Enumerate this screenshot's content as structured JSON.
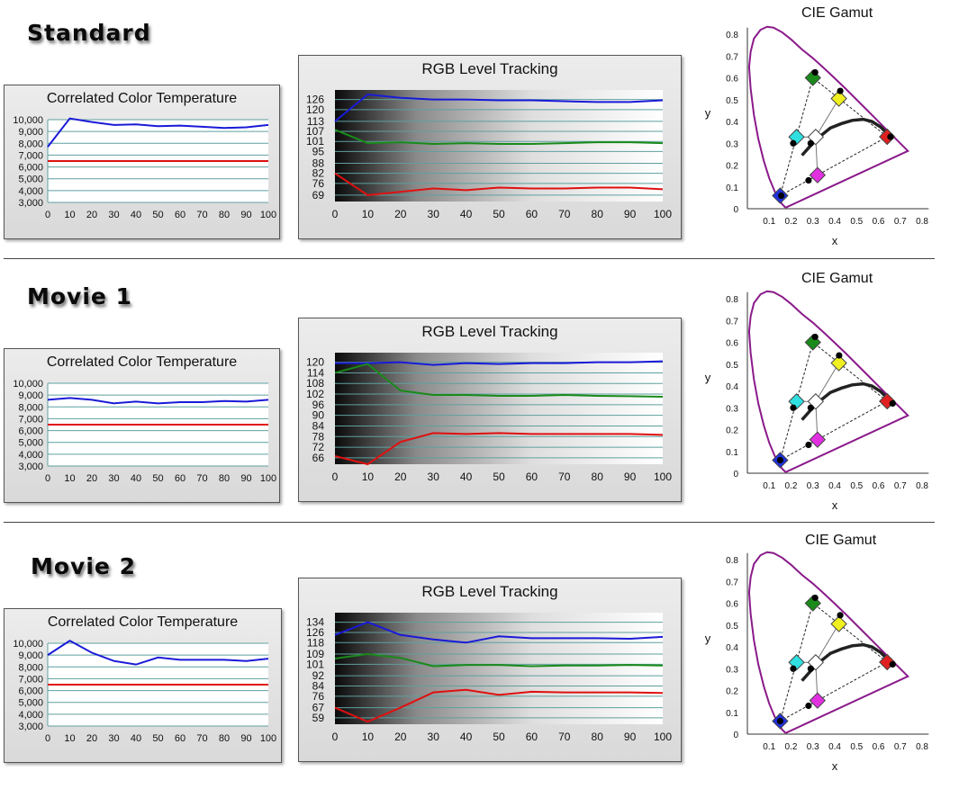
{
  "sections": [
    {
      "title": "Standard",
      "cct": {
        "title": "Correlated Color Temperature",
        "x": [
          0,
          10,
          20,
          30,
          40,
          50,
          60,
          70,
          80,
          90,
          100
        ],
        "x_ticks": [
          "0",
          "10",
          "20",
          "30",
          "40",
          "50",
          "60",
          "70",
          "80",
          "90",
          "100"
        ],
        "y_ticks": [
          "3,000",
          "4,000",
          "5,000",
          "6,000",
          "7,000",
          "8,000",
          "9,000",
          "10,000"
        ],
        "y_range": [
          3000,
          10000
        ],
        "measured": [
          7700,
          10100,
          9800,
          9550,
          9600,
          9450,
          9500,
          9400,
          9300,
          9350,
          9550
        ],
        "target": 6500,
        "colors": {
          "measured": "#1a1ad8",
          "target": "#e01010"
        }
      },
      "rgb": {
        "title": "RGB Level Tracking",
        "x": [
          0,
          10,
          20,
          30,
          40,
          50,
          60,
          70,
          80,
          90,
          100
        ],
        "x_ticks": [
          "0",
          "10",
          "20",
          "30",
          "40",
          "50",
          "60",
          "70",
          "80",
          "90",
          "100"
        ],
        "y_ticks": [
          "69",
          "76",
          "82",
          "88",
          "95",
          "101",
          "107",
          "113",
          "120",
          "126"
        ],
        "series": [
          {
            "color": "#1a1ad8",
            "values": [
              113,
              129,
              127,
              126,
              126,
              125.5,
              125.5,
              125,
              124.5,
              124.5,
              125.5
            ]
          },
          {
            "color": "#1a8a1a",
            "values": [
              108,
              100,
              100.5,
              99.5,
              100,
              99.5,
              99.5,
              100,
              100.5,
              100.5,
              100
            ]
          },
          {
            "color": "#e01010",
            "values": [
              82,
              69,
              71,
              73,
              72,
              73.5,
              73,
              73,
              73.5,
              73.5,
              72.5
            ]
          }
        ]
      },
      "gamut": {
        "title": "CIE Gamut",
        "xlabel": "x",
        "ylabel": "y",
        "x_ticks": [
          "0.1",
          "0.2",
          "0.3",
          "0.4",
          "0.5",
          "0.6",
          "0.7",
          "0.8"
        ],
        "y_ticks": [
          "0",
          "0.1",
          "0.2",
          "0.3",
          "0.4",
          "0.5",
          "0.6",
          "0.7",
          "0.8"
        ],
        "colors": {
          "locus": "#8a1a8a"
        },
        "measured": {
          "red": [
            0.655,
            0.33
          ],
          "green": [
            0.31,
            0.625
          ],
          "blue": [
            0.155,
            0.06
          ],
          "white": [
            0.29,
            0.3
          ],
          "cyan": [
            0.21,
            0.3
          ],
          "magenta": [
            0.28,
            0.13
          ],
          "yellow": [
            0.425,
            0.54
          ]
        }
      }
    },
    {
      "title": "Movie 1",
      "cct": {
        "title": "Correlated Color Temperature",
        "x": [
          0,
          10,
          20,
          30,
          40,
          50,
          60,
          70,
          80,
          90,
          100
        ],
        "x_ticks": [
          "0",
          "10",
          "20",
          "30",
          "40",
          "50",
          "60",
          "70",
          "80",
          "90",
          "100"
        ],
        "y_ticks": [
          "3,000",
          "4,000",
          "5,000",
          "6,000",
          "7,000",
          "8,000",
          "9,000",
          "10,000"
        ],
        "y_range": [
          3000,
          10000
        ],
        "measured": [
          8600,
          8750,
          8600,
          8300,
          8450,
          8300,
          8400,
          8400,
          8500,
          8450,
          8600
        ],
        "target": 6500,
        "colors": {
          "measured": "#1a1ad8",
          "target": "#e01010"
        }
      },
      "rgb": {
        "title": "RGB Level Tracking",
        "x": [
          0,
          10,
          20,
          30,
          40,
          50,
          60,
          70,
          80,
          90,
          100
        ],
        "x_ticks": [
          "0",
          "10",
          "20",
          "30",
          "40",
          "50",
          "60",
          "70",
          "80",
          "90",
          "100"
        ],
        "y_ticks": [
          "66",
          "72",
          "78",
          "84",
          "90",
          "96",
          "102",
          "108",
          "114",
          "120"
        ],
        "series": [
          {
            "color": "#1a1ad8",
            "values": [
              119.5,
              119.5,
              120,
              118.5,
              119.5,
              119,
              119.5,
              119.5,
              120,
              120,
              120.5
            ]
          },
          {
            "color": "#1a8a1a",
            "values": [
              114,
              119,
              104,
              101.5,
              101.5,
              101,
              101,
              101.5,
              101,
              100.8,
              100.5
            ]
          },
          {
            "color": "#e01010",
            "values": [
              67,
              62,
              75,
              80,
              79.5,
              80,
              79.5,
              79.5,
              79.5,
              79.5,
              79
            ]
          }
        ]
      },
      "gamut": {
        "title": "CIE Gamut",
        "xlabel": "x",
        "ylabel": "y",
        "x_ticks": [
          "0.1",
          "0.2",
          "0.3",
          "0.4",
          "0.5",
          "0.6",
          "0.7",
          "0.8"
        ],
        "y_ticks": [
          "0",
          "0.1",
          "0.2",
          "0.3",
          "0.4",
          "0.5",
          "0.6",
          "0.7",
          "0.8"
        ],
        "colors": {
          "locus": "#8a1a8a"
        },
        "measured": {
          "red": [
            0.665,
            0.32
          ],
          "green": [
            0.31,
            0.625
          ],
          "blue": [
            0.15,
            0.06
          ],
          "white": [
            0.29,
            0.3
          ],
          "cyan": [
            0.21,
            0.3
          ],
          "magenta": [
            0.28,
            0.13
          ],
          "yellow": [
            0.42,
            0.54
          ]
        }
      }
    },
    {
      "title": "Movie 2",
      "cct": {
        "title": "Correlated Color Temperature",
        "x": [
          0,
          10,
          20,
          30,
          40,
          50,
          60,
          70,
          80,
          90,
          100
        ],
        "x_ticks": [
          "0",
          "10",
          "20",
          "30",
          "40",
          "50",
          "60",
          "70",
          "80",
          "90",
          "100"
        ],
        "y_ticks": [
          "3,000",
          "4,000",
          "5,000",
          "6,000",
          "7,000",
          "8,000",
          "9,000",
          "10,000"
        ],
        "y_range": [
          3000,
          10000
        ],
        "measured": [
          9000,
          10300,
          9200,
          8500,
          8200,
          8800,
          8600,
          8600,
          8600,
          8500,
          8700
        ],
        "target": 6500,
        "colors": {
          "measured": "#1a1ad8",
          "target": "#e01010"
        }
      },
      "rgb": {
        "title": "RGB Level Tracking",
        "x": [
          0,
          10,
          20,
          30,
          40,
          50,
          60,
          70,
          80,
          90,
          100
        ],
        "x_ticks": [
          "0",
          "10",
          "20",
          "30",
          "40",
          "50",
          "60",
          "70",
          "80",
          "90",
          "100"
        ],
        "y_ticks": [
          "59",
          "67",
          "76",
          "84",
          "92",
          "101",
          "109",
          "118",
          "126",
          "134"
        ],
        "series": [
          {
            "color": "#1a1ad8",
            "values": [
              124,
              134,
              124,
              120.5,
              118,
              123,
              121.5,
              121.5,
              121.5,
              121,
              122.5
            ]
          },
          {
            "color": "#1a8a1a",
            "values": [
              105.5,
              109,
              106,
              99.5,
              100.5,
              100.5,
              99.5,
              100,
              100,
              100.5,
              100
            ]
          },
          {
            "color": "#e01010",
            "values": [
              67,
              56,
              67,
              79,
              81,
              77,
              79.5,
              79,
              79,
              79,
              78.5
            ]
          }
        ]
      },
      "gamut": {
        "title": "CIE Gamut",
        "xlabel": "x",
        "ylabel": "y",
        "x_ticks": [
          "0.1",
          "0.2",
          "0.3",
          "0.4",
          "0.5",
          "0.6",
          "0.7",
          "0.8"
        ],
        "y_ticks": [
          "0",
          "0.1",
          "0.2",
          "0.3",
          "0.4",
          "0.5",
          "0.6",
          "0.7",
          "0.8"
        ],
        "colors": {
          "locus": "#8a1a8a"
        },
        "measured": {
          "red": [
            0.665,
            0.32
          ],
          "green": [
            0.31,
            0.625
          ],
          "blue": [
            0.15,
            0.06
          ],
          "white": [
            0.29,
            0.3
          ],
          "cyan": [
            0.21,
            0.3
          ],
          "magenta": [
            0.28,
            0.13
          ],
          "yellow": [
            0.425,
            0.545
          ]
        }
      }
    }
  ],
  "chart_data": [
    {
      "type": "line",
      "title": "Correlated Color Temperature",
      "x": [
        0,
        10,
        20,
        30,
        40,
        50,
        60,
        70,
        80,
        90,
        100
      ],
      "ylim": [
        3000,
        10000
      ],
      "series": [
        {
          "values": [
            7700,
            10100,
            9800,
            9550,
            9600,
            9450,
            9500,
            9400,
            9300,
            9350,
            9550
          ]
        },
        {
          "values": [
            6500,
            6500,
            6500,
            6500,
            6500,
            6500,
            6500,
            6500,
            6500,
            6500,
            6500
          ]
        }
      ]
    },
    {
      "type": "line",
      "title": "RGB Level Tracking",
      "x": [
        0,
        10,
        20,
        30,
        40,
        50,
        60,
        70,
        80,
        90,
        100
      ],
      "series": [
        {
          "values": [
            113,
            129,
            127,
            126,
            126,
            125.5,
            125.5,
            125,
            124.5,
            124.5,
            125.5
          ]
        },
        {
          "values": [
            108,
            100,
            100.5,
            99.5,
            100,
            99.5,
            99.5,
            100,
            100.5,
            100.5,
            100
          ]
        },
        {
          "values": [
            82,
            69,
            71,
            73,
            72,
            73.5,
            73,
            73,
            73.5,
            73.5,
            72.5
          ]
        }
      ]
    },
    {
      "type": "scatter",
      "title": "CIE Gamut",
      "xlabel": "x",
      "ylabel": "y",
      "xlim": [
        0,
        0.8
      ],
      "ylim": [
        0,
        0.8
      ]
    },
    {
      "type": "line",
      "title": "Correlated Color Temperature",
      "x": [
        0,
        10,
        20,
        30,
        40,
        50,
        60,
        70,
        80,
        90,
        100
      ],
      "ylim": [
        3000,
        10000
      ],
      "series": [
        {
          "values": [
            8600,
            8750,
            8600,
            8300,
            8450,
            8300,
            8400,
            8400,
            8500,
            8450,
            8600
          ]
        },
        {
          "values": [
            6500,
            6500,
            6500,
            6500,
            6500,
            6500,
            6500,
            6500,
            6500,
            6500,
            6500
          ]
        }
      ]
    },
    {
      "type": "line",
      "title": "RGB Level Tracking",
      "x": [
        0,
        10,
        20,
        30,
        40,
        50,
        60,
        70,
        80,
        90,
        100
      ],
      "series": [
        {
          "values": [
            119.5,
            119.5,
            120,
            118.5,
            119.5,
            119,
            119.5,
            119.5,
            120,
            120,
            120.5
          ]
        },
        {
          "values": [
            114,
            119,
            104,
            101.5,
            101.5,
            101,
            101,
            101.5,
            101,
            100.8,
            100.5
          ]
        },
        {
          "values": [
            67,
            62,
            75,
            80,
            79.5,
            80,
            79.5,
            79.5,
            79.5,
            79.5,
            79
          ]
        }
      ]
    },
    {
      "type": "scatter",
      "title": "CIE Gamut",
      "xlabel": "x",
      "ylabel": "y",
      "xlim": [
        0,
        0.8
      ],
      "ylim": [
        0,
        0.8
      ]
    },
    {
      "type": "line",
      "title": "Correlated Color Temperature",
      "x": [
        0,
        10,
        20,
        30,
        40,
        50,
        60,
        70,
        80,
        90,
        100
      ],
      "ylim": [
        3000,
        10000
      ],
      "series": [
        {
          "values": [
            9000,
            10300,
            9200,
            8500,
            8200,
            8800,
            8600,
            8600,
            8600,
            8500,
            8700
          ]
        },
        {
          "values": [
            6500,
            6500,
            6500,
            6500,
            6500,
            6500,
            6500,
            6500,
            6500,
            6500,
            6500
          ]
        }
      ]
    },
    {
      "type": "line",
      "title": "RGB Level Tracking",
      "x": [
        0,
        10,
        20,
        30,
        40,
        50,
        60,
        70,
        80,
        90,
        100
      ],
      "series": [
        {
          "values": [
            124,
            134,
            124,
            120.5,
            118,
            123,
            121.5,
            121.5,
            121.5,
            121,
            122.5
          ]
        },
        {
          "values": [
            105.5,
            109,
            106,
            99.5,
            100.5,
            100.5,
            99.5,
            100,
            100,
            100.5,
            100
          ]
        },
        {
          "values": [
            67,
            56,
            67,
            79,
            81,
            77,
            79.5,
            79,
            79,
            79,
            78.5
          ]
        }
      ]
    },
    {
      "type": "scatter",
      "title": "CIE Gamut",
      "xlabel": "x",
      "ylabel": "y",
      "xlim": [
        0,
        0.8
      ],
      "ylim": [
        0,
        0.8
      ]
    }
  ]
}
